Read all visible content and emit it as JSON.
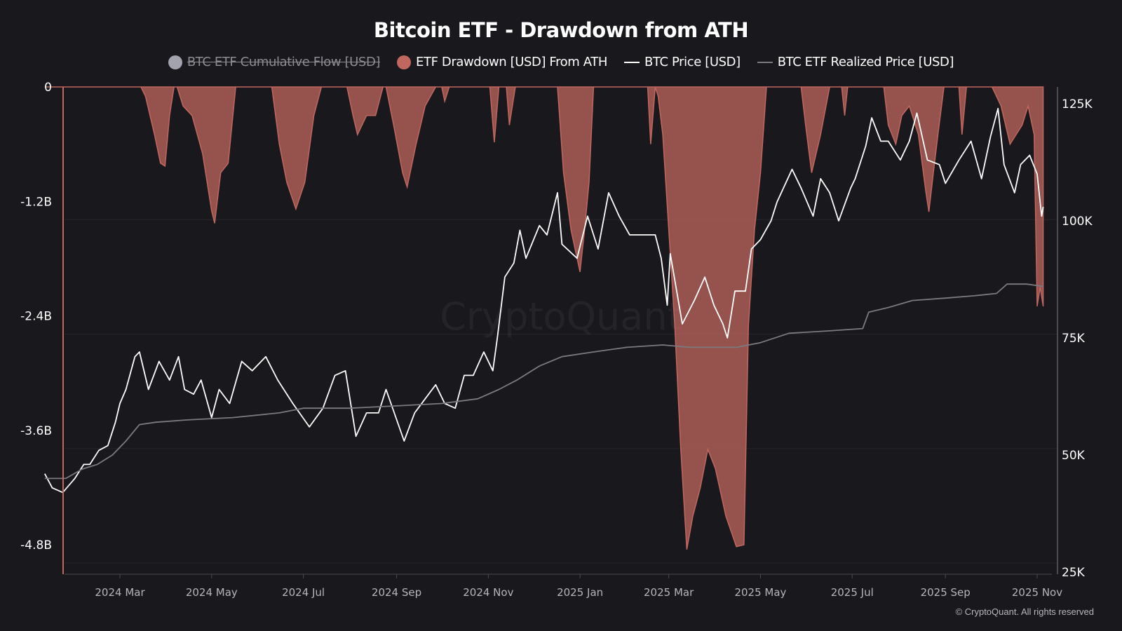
{
  "title": "Bitcoin ETF - Drawdown from ATH",
  "legend": [
    {
      "label": "BTC ETF Cumulative Flow [USD]",
      "color": "#a3a3ad",
      "marker": "circle",
      "hidden": true
    },
    {
      "label": "ETF Drawdown [USD] From ATH",
      "color": "#c0675f",
      "marker": "circle",
      "hidden": false
    },
    {
      "label": "BTC Price [USD]",
      "color": "#ffffff",
      "marker": "line",
      "hidden": false
    },
    {
      "label": "BTC ETF Realized Price [USD]",
      "color": "#7a7a80",
      "marker": "line",
      "hidden": false
    }
  ],
  "copyright": "© CryptoQuant. All rights reserved",
  "watermark": "CryptoQuant",
  "chart_data": {
    "type": "line",
    "title": "Bitcoin ETF - Drawdown from ATH",
    "legend_position": "top",
    "grid": true,
    "x_ticks": [
      "2024 Mar",
      "2024 May",
      "2024 Jul",
      "2024 Sep",
      "2024 Nov",
      "2025 Jan",
      "2025 Mar",
      "2025 May",
      "2025 Jul",
      "2025 Sep",
      "2025 Nov"
    ],
    "x_tick_dates": [
      "2024-03-01",
      "2024-05-01",
      "2024-07-01",
      "2024-09-01",
      "2024-11-01",
      "2025-01-01",
      "2025-03-01",
      "2025-05-01",
      "2025-07-01",
      "2025-09-01",
      "2025-11-01"
    ],
    "y_left": {
      "ticks": [
        "0",
        "-1.2B",
        "-2.4B",
        "-3.6B",
        "-4.8B"
      ],
      "tick_values": [
        0,
        -1.2,
        -2.4,
        -3.6,
        -4.8
      ],
      "unit": "B USD",
      "range": [
        -5.1,
        0
      ]
    },
    "y_right": {
      "ticks": [
        "125K",
        "100K",
        "75K",
        "50K",
        "25K"
      ],
      "tick_values": [
        125,
        100,
        75,
        50,
        25
      ],
      "unit": "K USD",
      "range": [
        25,
        128
      ]
    },
    "series": [
      {
        "name": "ETF Drawdown [USD] From ATH",
        "type": "area",
        "axis": "left",
        "color": "#c0675f",
        "points": [
          [
            "2024-01-11",
            0
          ],
          [
            "2024-03-15",
            0
          ],
          [
            "2024-03-18",
            -0.1
          ],
          [
            "2024-03-24",
            -0.5
          ],
          [
            "2024-03-28",
            -0.8
          ],
          [
            "2024-03-31",
            -0.83
          ],
          [
            "2024-04-03",
            -0.3
          ],
          [
            "2024-04-06",
            0
          ],
          [
            "2024-04-08",
            0
          ],
          [
            "2024-04-12",
            -0.2
          ],
          [
            "2024-04-18",
            -0.3
          ],
          [
            "2024-04-25",
            -0.7
          ],
          [
            "2024-05-01",
            -1.3
          ],
          [
            "2024-05-03",
            -1.43
          ],
          [
            "2024-05-07",
            -0.9
          ],
          [
            "2024-05-12",
            -0.8
          ],
          [
            "2024-05-17",
            0
          ],
          [
            "2024-06-10",
            0
          ],
          [
            "2024-06-15",
            -0.6
          ],
          [
            "2024-06-20",
            -1.0
          ],
          [
            "2024-06-26",
            -1.28
          ],
          [
            "2024-07-02",
            -1.0
          ],
          [
            "2024-07-08",
            -0.3
          ],
          [
            "2024-07-13",
            0
          ],
          [
            "2024-07-30",
            0
          ],
          [
            "2024-08-03",
            -0.3
          ],
          [
            "2024-08-06",
            -0.5
          ],
          [
            "2024-08-12",
            -0.3
          ],
          [
            "2024-08-18",
            -0.3
          ],
          [
            "2024-08-23",
            0
          ],
          [
            "2024-08-25",
            0
          ],
          [
            "2024-08-30",
            -0.4
          ],
          [
            "2024-09-05",
            -0.9
          ],
          [
            "2024-09-08",
            -1.05
          ],
          [
            "2024-09-14",
            -0.6
          ],
          [
            "2024-09-20",
            -0.2
          ],
          [
            "2024-09-27",
            0
          ],
          [
            "2024-10-01",
            0
          ],
          [
            "2024-10-03",
            -0.15
          ],
          [
            "2024-10-06",
            0
          ],
          [
            "2024-11-02",
            0
          ],
          [
            "2024-11-05",
            -0.58
          ],
          [
            "2024-11-08",
            0
          ],
          [
            "2024-11-13",
            0
          ],
          [
            "2024-11-15",
            -0.4
          ],
          [
            "2024-11-19",
            0
          ],
          [
            "2024-12-17",
            0
          ],
          [
            "2024-12-21",
            -0.9
          ],
          [
            "2024-12-26",
            -1.5
          ],
          [
            "2025-01-01",
            -1.94
          ],
          [
            "2025-01-04",
            -1.5
          ],
          [
            "2025-01-07",
            -1.0
          ],
          [
            "2025-01-10",
            0
          ],
          [
            "2025-02-15",
            0
          ],
          [
            "2025-02-17",
            -0.6
          ],
          [
            "2025-02-20",
            0
          ],
          [
            "2025-02-22",
            -0.1
          ],
          [
            "2025-02-25",
            -0.5
          ],
          [
            "2025-03-01",
            -1.5
          ],
          [
            "2025-03-05",
            -2.5
          ],
          [
            "2025-03-09",
            -3.8
          ],
          [
            "2025-03-13",
            -4.85
          ],
          [
            "2025-03-17",
            -4.5
          ],
          [
            "2025-03-22",
            -4.2
          ],
          [
            "2025-03-27",
            -3.8
          ],
          [
            "2025-04-01",
            -4.0
          ],
          [
            "2025-04-08",
            -4.5
          ],
          [
            "2025-04-15",
            -4.82
          ],
          [
            "2025-04-20",
            -4.8
          ],
          [
            "2025-04-23",
            -2.5
          ],
          [
            "2025-04-27",
            -1.5
          ],
          [
            "2025-05-01",
            -0.9
          ],
          [
            "2025-05-05",
            0
          ],
          [
            "2025-05-28",
            0
          ],
          [
            "2025-05-31",
            -0.4
          ],
          [
            "2025-06-04",
            -0.9
          ],
          [
            "2025-06-10",
            -0.5
          ],
          [
            "2025-06-16",
            0
          ],
          [
            "2025-06-24",
            0
          ],
          [
            "2025-06-26",
            -0.3
          ],
          [
            "2025-06-28",
            0
          ],
          [
            "2025-07-22",
            0
          ],
          [
            "2025-07-25",
            -0.4
          ],
          [
            "2025-07-30",
            -0.6
          ],
          [
            "2025-08-03",
            -0.3
          ],
          [
            "2025-08-08",
            -0.2
          ],
          [
            "2025-08-14",
            -0.5
          ],
          [
            "2025-08-19",
            -1.1
          ],
          [
            "2025-08-21",
            -1.31
          ],
          [
            "2025-08-24",
            -0.9
          ],
          [
            "2025-08-27",
            -0.5
          ],
          [
            "2025-08-31",
            0
          ],
          [
            "2025-09-10",
            0
          ],
          [
            "2025-09-12",
            -0.5
          ],
          [
            "2025-09-15",
            0
          ],
          [
            "2025-10-02",
            0
          ],
          [
            "2025-10-08",
            -0.2
          ],
          [
            "2025-10-14",
            -0.6
          ],
          [
            "2025-10-18",
            -0.5
          ],
          [
            "2025-10-22",
            -0.4
          ],
          [
            "2025-10-26",
            -0.2
          ],
          [
            "2025-10-30",
            -0.5
          ],
          [
            "2025-11-01",
            -2.3
          ],
          [
            "2025-11-03",
            -2.1
          ],
          [
            "2025-11-05",
            -2.3
          ]
        ]
      },
      {
        "name": "BTC Price [USD]",
        "type": "line",
        "axis": "right",
        "color": "#ffffff",
        "points": [
          [
            "2024-01-11",
            46
          ],
          [
            "2024-01-16",
            43
          ],
          [
            "2024-01-23",
            42
          ],
          [
            "2024-01-31",
            45
          ],
          [
            "2024-02-06",
            48
          ],
          [
            "2024-02-10",
            48
          ],
          [
            "2024-02-16",
            51
          ],
          [
            "2024-02-22",
            52
          ],
          [
            "2024-02-27",
            57
          ],
          [
            "2024-03-01",
            61
          ],
          [
            "2024-03-05",
            64
          ],
          [
            "2024-03-11",
            71
          ],
          [
            "2024-03-14",
            72
          ],
          [
            "2024-03-20",
            64
          ],
          [
            "2024-03-27",
            70
          ],
          [
            "2024-04-03",
            66
          ],
          [
            "2024-04-09",
            71
          ],
          [
            "2024-04-13",
            64
          ],
          [
            "2024-04-19",
            63
          ],
          [
            "2024-04-24",
            66
          ],
          [
            "2024-05-01",
            58
          ],
          [
            "2024-05-06",
            64
          ],
          [
            "2024-05-13",
            61
          ],
          [
            "2024-05-21",
            70
          ],
          [
            "2024-05-28",
            68
          ],
          [
            "2024-06-06",
            71
          ],
          [
            "2024-06-14",
            66
          ],
          [
            "2024-06-24",
            61
          ],
          [
            "2024-07-05",
            56
          ],
          [
            "2024-07-14",
            60
          ],
          [
            "2024-07-22",
            67
          ],
          [
            "2024-07-29",
            68
          ],
          [
            "2024-08-05",
            54
          ],
          [
            "2024-08-12",
            59
          ],
          [
            "2024-08-20",
            59
          ],
          [
            "2024-08-25",
            64
          ],
          [
            "2024-09-06",
            53
          ],
          [
            "2024-09-13",
            59
          ],
          [
            "2024-09-20",
            62
          ],
          [
            "2024-09-27",
            65
          ],
          [
            "2024-10-03",
            61
          ],
          [
            "2024-10-10",
            60
          ],
          [
            "2024-10-16",
            67
          ],
          [
            "2024-10-22",
            67
          ],
          [
            "2024-10-29",
            72
          ],
          [
            "2024-11-04",
            68
          ],
          [
            "2024-11-07",
            75
          ],
          [
            "2024-11-12",
            88
          ],
          [
            "2024-11-18",
            91
          ],
          [
            "2024-11-22",
            98
          ],
          [
            "2024-11-26",
            92
          ],
          [
            "2024-12-05",
            99
          ],
          [
            "2024-12-10",
            97
          ],
          [
            "2024-12-17",
            106
          ],
          [
            "2024-12-20",
            95
          ],
          [
            "2024-12-30",
            92
          ],
          [
            "2025-01-06",
            101
          ],
          [
            "2025-01-13",
            94
          ],
          [
            "2025-01-20",
            106
          ],
          [
            "2025-01-27",
            101
          ],
          [
            "2025-02-03",
            97
          ],
          [
            "2025-02-10",
            97
          ],
          [
            "2025-02-20",
            97
          ],
          [
            "2025-02-24",
            92
          ],
          [
            "2025-02-28",
            82
          ],
          [
            "2025-03-02",
            93
          ],
          [
            "2025-03-10",
            78
          ],
          [
            "2025-03-18",
            83
          ],
          [
            "2025-03-25",
            88
          ],
          [
            "2025-03-31",
            82
          ],
          [
            "2025-04-06",
            78
          ],
          [
            "2025-04-09",
            75
          ],
          [
            "2025-04-14",
            85
          ],
          [
            "2025-04-21",
            85
          ],
          [
            "2025-04-25",
            94
          ],
          [
            "2025-05-01",
            96
          ],
          [
            "2025-05-08",
            100
          ],
          [
            "2025-05-12",
            104
          ],
          [
            "2025-05-22",
            111
          ],
          [
            "2025-05-28",
            107
          ],
          [
            "2025-06-05",
            101
          ],
          [
            "2025-06-10",
            109
          ],
          [
            "2025-06-16",
            106
          ],
          [
            "2025-06-22",
            100
          ],
          [
            "2025-06-30",
            107
          ],
          [
            "2025-07-03",
            109
          ],
          [
            "2025-07-10",
            116
          ],
          [
            "2025-07-14",
            122
          ],
          [
            "2025-07-20",
            117
          ],
          [
            "2025-07-25",
            117
          ],
          [
            "2025-08-02",
            113
          ],
          [
            "2025-08-08",
            117
          ],
          [
            "2025-08-13",
            123
          ],
          [
            "2025-08-20",
            113
          ],
          [
            "2025-08-28",
            112
          ],
          [
            "2025-09-01",
            108
          ],
          [
            "2025-09-10",
            113
          ],
          [
            "2025-09-18",
            117
          ],
          [
            "2025-09-25",
            109
          ],
          [
            "2025-10-01",
            118
          ],
          [
            "2025-10-06",
            124
          ],
          [
            "2025-10-10",
            112
          ],
          [
            "2025-10-17",
            106
          ],
          [
            "2025-10-21",
            112
          ],
          [
            "2025-10-27",
            114
          ],
          [
            "2025-11-01",
            110
          ],
          [
            "2025-11-04",
            101
          ],
          [
            "2025-11-05",
            103
          ]
        ]
      },
      {
        "name": "BTC ETF Realized Price [USD]",
        "type": "line",
        "axis": "right",
        "color": "#7a7a80",
        "points": [
          [
            "2024-01-11",
            45
          ],
          [
            "2024-01-25",
            45
          ],
          [
            "2024-02-05",
            47
          ],
          [
            "2024-02-15",
            48
          ],
          [
            "2024-02-25",
            50
          ],
          [
            "2024-03-05",
            53
          ],
          [
            "2024-03-14",
            56.5
          ],
          [
            "2024-03-25",
            57
          ],
          [
            "2024-04-15",
            57.5
          ],
          [
            "2024-05-15",
            58
          ],
          [
            "2024-06-15",
            59
          ],
          [
            "2024-07-01",
            60
          ],
          [
            "2024-08-01",
            60
          ],
          [
            "2024-09-01",
            60.5
          ],
          [
            "2024-10-01",
            61
          ],
          [
            "2024-10-25",
            62
          ],
          [
            "2024-11-08",
            64
          ],
          [
            "2024-11-20",
            66
          ],
          [
            "2024-12-05",
            69
          ],
          [
            "2024-12-20",
            71
          ],
          [
            "2025-01-10",
            72
          ],
          [
            "2025-02-01",
            73
          ],
          [
            "2025-02-25",
            73.5
          ],
          [
            "2025-03-15",
            73
          ],
          [
            "2025-04-15",
            73
          ],
          [
            "2025-05-01",
            74
          ],
          [
            "2025-05-20",
            76
          ],
          [
            "2025-06-15",
            76.5
          ],
          [
            "2025-07-08",
            77
          ],
          [
            "2025-07-12",
            80.5
          ],
          [
            "2025-07-25",
            81.5
          ],
          [
            "2025-08-10",
            83
          ],
          [
            "2025-09-01",
            83.5
          ],
          [
            "2025-09-20",
            84
          ],
          [
            "2025-10-05",
            84.5
          ],
          [
            "2025-10-12",
            86.5
          ],
          [
            "2025-10-25",
            86.5
          ],
          [
            "2025-11-05",
            86
          ]
        ]
      }
    ]
  }
}
